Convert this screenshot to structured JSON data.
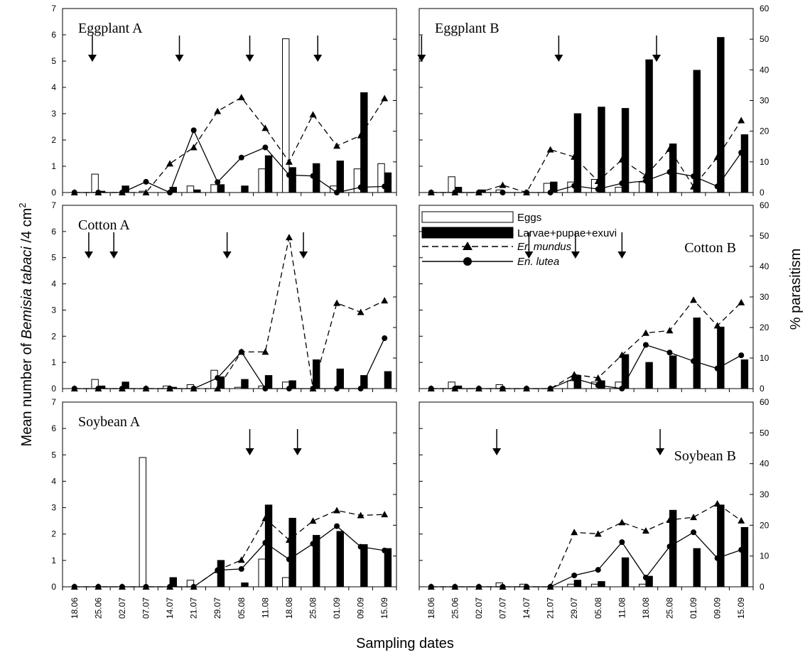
{
  "chart_data": {
    "type": "combo-bar-line",
    "ylabel_left": "Mean number of Bemisia tabaci /4 cm2",
    "ylabel_left_parts": {
      "prefix": "Mean number of ",
      "italic": "Bemisia tabaci",
      "suffix": " /4 cm",
      "sup": "2"
    },
    "ylabel_right": "% parasitism",
    "xlabel": "Sampling dates",
    "categories": [
      "18.06",
      "25.06",
      "02.07",
      "07.07",
      "14.07",
      "21.07",
      "29.07",
      "05.08",
      "11.08",
      "18.08",
      "25.08",
      "01.09",
      "09.09",
      "15.09"
    ],
    "left_ylim": [
      0,
      7
    ],
    "left_ticks": [
      "0",
      "1",
      "2",
      "3",
      "4",
      "5",
      "6",
      "7"
    ],
    "right_ylim": [
      0,
      60
    ],
    "right_ticks": [
      "0",
      "10",
      "20",
      "30",
      "40",
      "50",
      "60"
    ],
    "legend": {
      "eggs": "Eggs",
      "larvae": "Larvae+pupae+exuvi",
      "er": "Er. mundus",
      "en": "En. lutea"
    },
    "panels": [
      {
        "title": "Eggplant A",
        "eggs": [
          0,
          0.7,
          0,
          0.05,
          0,
          0.25,
          0.3,
          0,
          0.9,
          5.85,
          0,
          0.25,
          0.9,
          1.1
        ],
        "larvae": [
          0,
          0.05,
          0.25,
          0,
          0.2,
          0.1,
          0.3,
          0.25,
          1.4,
          0.95,
          1.1,
          1.2,
          3.8,
          0.75
        ],
        "er_mundus": [
          0,
          0,
          0,
          0,
          9.4,
          14.7,
          26.5,
          31,
          21,
          10,
          25.4,
          15.2,
          18.6,
          30.7
        ],
        "en_lutea": [
          0,
          0,
          0,
          3.5,
          0,
          20.3,
          3.4,
          11.4,
          14.7,
          5.7,
          5.4,
          0,
          1.7,
          2
        ],
        "arrows": [
          1.25,
          4.9,
          7.85,
          10.7
        ]
      },
      {
        "title": "Eggplant B",
        "eggs": [
          0,
          0.6,
          0,
          0.1,
          0,
          0.35,
          0.4,
          0.5,
          0.2,
          0.4,
          0,
          0,
          0,
          0
        ],
        "larvae": [
          0,
          0.2,
          0.1,
          0,
          0,
          0.4,
          3,
          3.25,
          3.2,
          5.05,
          1.85,
          4.65,
          5.9,
          2.2
        ],
        "er_mundus": [
          0,
          0,
          0,
          2.4,
          0,
          14,
          11.6,
          3.7,
          10.7,
          5.5,
          14.2,
          1.9,
          11.5,
          23.5
        ],
        "en_lutea": [
          0,
          0,
          0,
          0,
          0,
          0,
          2.2,
          1.1,
          3,
          3.8,
          6.7,
          5.3,
          2,
          13
        ],
        "arrows": [
          0.1,
          5.85,
          9.95
        ]
      },
      {
        "title": "Cotton A",
        "eggs": [
          0,
          0.35,
          0,
          0,
          0.1,
          0.15,
          0.7,
          0.05,
          0.1,
          0.25,
          0,
          0,
          0,
          0
        ],
        "larvae": [
          0,
          0.1,
          0.25,
          0,
          0.05,
          0,
          0.45,
          0.35,
          0.5,
          0.3,
          1.1,
          0.75,
          0.5,
          0.65
        ],
        "er_mundus": [
          0,
          0,
          0,
          0,
          0,
          0,
          0,
          12,
          12,
          49.5,
          0,
          28,
          25,
          28.8
        ],
        "en_lutea": [
          0,
          0,
          0,
          0,
          0,
          0,
          3.5,
          12,
          0,
          0,
          0,
          0,
          0,
          16.5
        ],
        "arrows": [
          1.1,
          2.15,
          6.9,
          10.1
        ]
      },
      {
        "title": "Cotton B",
        "eggs": [
          0,
          0.25,
          0,
          0.15,
          0,
          0,
          0.3,
          0.25,
          0.25,
          0,
          0,
          0,
          0,
          0
        ],
        "larvae": [
          0,
          0.1,
          0,
          0,
          0,
          0,
          0.5,
          0.3,
          1.3,
          1,
          1.25,
          2.7,
          2.35,
          1.1
        ],
        "er_mundus": [
          0,
          0,
          0,
          0,
          0,
          0,
          4.6,
          3.5,
          11,
          18.2,
          19,
          29,
          20.6,
          28.2
        ],
        "en_lutea": [
          0,
          0,
          0,
          0,
          0,
          0,
          3.3,
          1.1,
          0,
          14.3,
          11.8,
          9,
          6.6,
          10.9
        ],
        "arrows": [
          4.6,
          6.55,
          8.5
        ]
      },
      {
        "title": "Soybean A",
        "eggs": [
          0,
          0,
          0,
          4.9,
          0,
          0.25,
          0,
          0,
          1.05,
          0.35,
          0,
          0,
          0,
          0
        ],
        "larvae": [
          0,
          0,
          0,
          0,
          0.35,
          0,
          1,
          0.15,
          3.1,
          2.6,
          1.95,
          2.1,
          1.6,
          1.45
        ],
        "er_mundus": [
          0,
          0,
          0,
          0,
          0,
          0,
          5.4,
          8.7,
          22.2,
          15.2,
          21.4,
          24.8,
          23.2,
          23.5
        ],
        "en_lutea": [
          0,
          0,
          0,
          0,
          0,
          0,
          5.4,
          5.8,
          14.3,
          8.9,
          14,
          19.7,
          13,
          11.8
        ],
        "arrows": [
          7.85,
          9.85
        ]
      },
      {
        "title": "Soybean B",
        "eggs": [
          0,
          0,
          0,
          0.15,
          0.1,
          0,
          0.1,
          0.1,
          0,
          0.1,
          0,
          0,
          0,
          0
        ],
        "larvae": [
          0,
          0,
          0,
          0,
          0,
          0,
          0.25,
          0.2,
          1.1,
          0.4,
          2.9,
          1.45,
          3.1,
          2.25
        ],
        "er_mundus": [
          0,
          0,
          0,
          0,
          0,
          0,
          17.7,
          17.2,
          20.9,
          18.2,
          21.7,
          22.6,
          27,
          21.5
        ],
        "en_lutea": [
          0,
          0,
          0,
          0,
          0,
          0,
          3.7,
          5.5,
          14.5,
          3,
          13.1,
          17.7,
          9.3,
          12
        ],
        "arrows": [
          3.25,
          10.1
        ]
      }
    ]
  }
}
